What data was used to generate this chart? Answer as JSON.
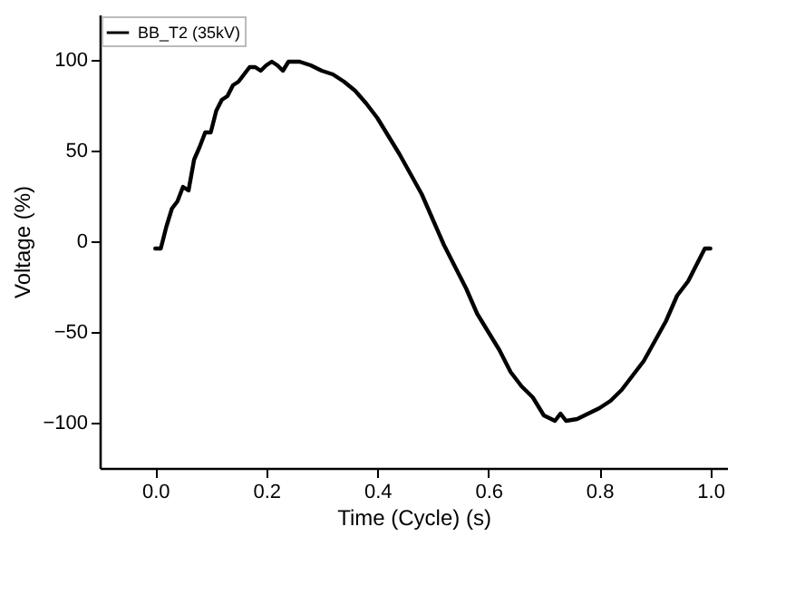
{
  "chart_data": {
    "type": "line",
    "xlabel": "Time (Cycle) (s)",
    "ylabel": "Voltage (%)",
    "xlim": [
      -0.1,
      1.03
    ],
    "ylim": [
      -125,
      125
    ],
    "xticks": [
      {
        "value": 0,
        "label": "0.0"
      },
      0.2,
      0.4,
      0.6,
      0.8,
      {
        "value": 1,
        "label": "1.0"
      }
    ],
    "yticks": [
      -100,
      -50,
      0,
      50,
      100
    ],
    "grid": false,
    "legend": "top left",
    "line_style": "solid",
    "x": [
      0,
      0.01,
      0.02,
      0.03,
      0.04,
      0.05,
      0.06,
      0.07,
      0.08,
      0.09,
      0.1,
      0.11,
      0.12,
      0.13,
      0.14,
      0.15,
      0.16,
      0.17,
      0.18,
      0.19,
      0.2,
      0.21,
      0.22,
      0.23,
      0.24,
      0.25,
      0.26,
      0.28,
      0.3,
      0.32,
      0.34,
      0.36,
      0.38,
      0.4,
      0.42,
      0.44,
      0.46,
      0.48,
      0.5,
      0.52,
      0.54,
      0.56,
      0.58,
      0.6,
      0.62,
      0.64,
      0.66,
      0.68,
      0.7,
      0.72,
      0.73,
      0.74,
      0.76,
      0.78,
      0.8,
      0.82,
      0.84,
      0.86,
      0.88,
      0.9,
      0.92,
      0.94,
      0.96,
      0.98,
      0.99,
      1.0
    ],
    "series": [
      {
        "name": "BB_T2 (35kV)",
        "color": "#000000",
        "values": [
          -4,
          -4,
          8,
          18,
          22,
          30,
          28,
          45,
          52,
          60,
          60,
          72,
          78,
          80,
          86,
          88,
          92,
          96,
          96,
          94,
          97,
          99,
          97,
          94,
          99,
          99,
          99,
          97,
          94,
          92,
          88,
          83,
          76,
          68,
          58,
          48,
          37,
          26,
          12,
          -2,
          -14,
          -26,
          -40,
          -50,
          -60,
          -72,
          -80,
          -86,
          -96,
          -99,
          -95,
          -99,
          -98,
          -95,
          -92,
          -88,
          -82,
          -74,
          -66,
          -55,
          -44,
          -30,
          -22,
          -10,
          -4,
          -4
        ]
      }
    ]
  }
}
